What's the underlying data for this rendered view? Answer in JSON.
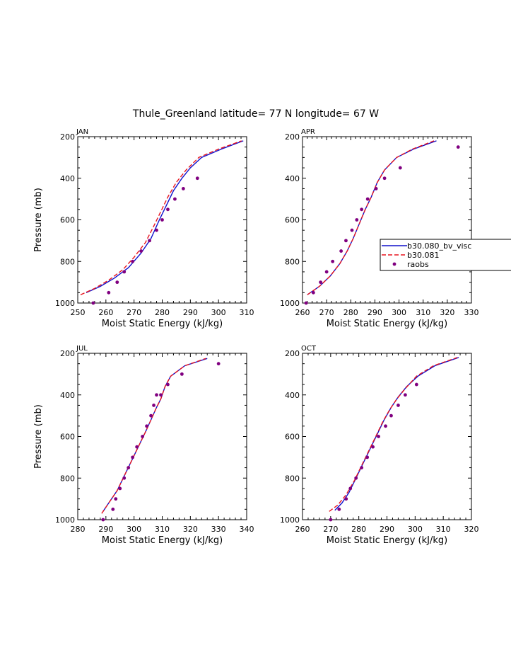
{
  "page_title": "Thule_Greenland  latitude= 77 N longitude= 67 W",
  "colors": {
    "model1": "#1010cc",
    "model2": "#e8141e",
    "obs": "#800080"
  },
  "legend": [
    {
      "label": "b30.080_bv_visc",
      "style": "solid",
      "color": "#1010cc"
    },
    {
      "label": "b30.081",
      "style": "dashed",
      "color": "#e8141e"
    },
    {
      "label": "raobs",
      "style": "marker",
      "color": "#800080"
    }
  ],
  "chart_data": [
    {
      "type": "line",
      "panel_label": "JAN",
      "xlabel": "Moist Static Energy (kJ/kg)",
      "ylabel": "Pressure (mb)",
      "xlim": [
        250,
        310
      ],
      "ylim": [
        200,
        1000
      ],
      "y_reversed": true,
      "xticks": [
        250,
        260,
        270,
        280,
        290,
        300,
        310
      ],
      "yticks": [
        200,
        400,
        600,
        800,
        1000
      ],
      "series": [
        {
          "name": "b30.080_bv_visc",
          "style": "solid",
          "x": [
            253,
            258,
            263,
            268,
            272.5,
            276,
            279,
            281.5,
            284,
            287,
            290,
            294,
            301,
            308.8
          ],
          "y": [
            950,
            920,
            880,
            830,
            760,
            690,
            600,
            530,
            460,
            400,
            350,
            300,
            260,
            220
          ]
        },
        {
          "name": "b30.081",
          "style": "dashed",
          "x": [
            251,
            256,
            261,
            266,
            270,
            274,
            277,
            279.5,
            282,
            285,
            288.5,
            293,
            300,
            308.2
          ],
          "y": [
            960,
            930,
            890,
            840,
            780,
            710,
            630,
            560,
            490,
            420,
            360,
            300,
            260,
            220
          ]
        },
        {
          "name": "raobs",
          "style": "marker",
          "x": [
            255.5,
            261,
            264,
            266.5,
            269.5,
            272.5,
            275.5,
            278,
            280,
            282,
            284.5,
            287.5,
            292.5
          ],
          "y": [
            1000,
            950,
            900,
            850,
            800,
            750,
            700,
            650,
            600,
            550,
            500,
            450,
            400
          ]
        }
      ]
    },
    {
      "type": "line",
      "panel_label": "APR",
      "xlabel": "Moist Static Energy (kJ/kg)",
      "ylabel": "",
      "xlim": [
        260,
        330
      ],
      "ylim": [
        200,
        1000
      ],
      "y_reversed": true,
      "xticks": [
        260,
        270,
        280,
        290,
        300,
        310,
        320,
        330
      ],
      "yticks": [
        200,
        400,
        600,
        800,
        1000
      ],
      "series": [
        {
          "name": "b30.080_bv_visc",
          "style": "solid",
          "x": [
            262,
            267,
            271.5,
            275.5,
            278.5,
            281,
            283.5,
            286,
            288.5,
            291,
            294,
            299,
            306,
            315.5
          ],
          "y": [
            960,
            920,
            870,
            810,
            750,
            690,
            620,
            550,
            490,
            420,
            360,
            300,
            260,
            220
          ]
        },
        {
          "name": "b30.081",
          "style": "dashed",
          "x": [
            262,
            267,
            271.5,
            275.5,
            278.5,
            281,
            283.5,
            286,
            288.5,
            291,
            294,
            299,
            305.5,
            314.5
          ],
          "y": [
            960,
            920,
            870,
            810,
            750,
            690,
            620,
            550,
            490,
            420,
            360,
            300,
            260,
            220
          ]
        },
        {
          "name": "raobs",
          "style": "marker",
          "x": [
            261.5,
            264.5,
            267.5,
            270,
            272.5,
            276,
            278,
            280.5,
            282.5,
            284.5,
            287,
            290.5,
            294,
            300.5,
            324.5
          ],
          "y": [
            1000,
            950,
            900,
            850,
            800,
            750,
            700,
            650,
            600,
            550,
            500,
            450,
            400,
            350,
            250
          ]
        }
      ]
    },
    {
      "type": "line",
      "panel_label": "JUL",
      "xlabel": "Moist Static Energy (kJ/kg)",
      "ylabel": "Pressure (mb)",
      "xlim": [
        280,
        340
      ],
      "ylim": [
        200,
        1000
      ],
      "y_reversed": true,
      "xticks": [
        280,
        290,
        300,
        310,
        320,
        330,
        340
      ],
      "yticks": [
        200,
        400,
        600,
        800,
        1000
      ],
      "series": [
        {
          "name": "b30.080_bv_visc",
          "style": "solid",
          "x": [
            289,
            291,
            294,
            296.5,
            299,
            301.5,
            304,
            306,
            308,
            309.5,
            311,
            313,
            318,
            326
          ],
          "y": [
            960,
            920,
            860,
            790,
            720,
            650,
            580,
            520,
            460,
            420,
            360,
            310,
            260,
            225
          ]
        },
        {
          "name": "b30.081",
          "style": "dashed",
          "x": [
            288.5,
            291,
            294,
            296.5,
            299,
            301.5,
            304,
            306,
            308,
            309.5,
            311,
            313,
            318,
            325.5
          ],
          "y": [
            970,
            920,
            860,
            790,
            720,
            650,
            580,
            520,
            460,
            420,
            360,
            310,
            260,
            225
          ]
        },
        {
          "name": "raobs",
          "style": "marker",
          "x": [
            289,
            292.5,
            293.5,
            295,
            296.5,
            298,
            299.5,
            301,
            303,
            304.5,
            306,
            307,
            308,
            309.5,
            312,
            317,
            330
          ],
          "y": [
            1000,
            950,
            900,
            850,
            800,
            750,
            700,
            650,
            600,
            550,
            500,
            450,
            400,
            400,
            350,
            300,
            250
          ]
        }
      ]
    },
    {
      "type": "line",
      "panel_label": "OCT",
      "xlabel": "Moist Static Energy (kJ/kg)",
      "ylabel": "",
      "xlim": [
        260,
        320
      ],
      "ylim": [
        200,
        1000
      ],
      "y_reversed": true,
      "xticks": [
        260,
        270,
        280,
        290,
        300,
        310,
        320
      ],
      "yticks": [
        200,
        400,
        600,
        800,
        1000
      ],
      "series": [
        {
          "name": "b30.080_bv_visc",
          "style": "solid",
          "x": [
            271.5,
            274,
            276.5,
            279,
            281.5,
            284,
            286.5,
            289,
            291.5,
            294,
            297,
            301,
            307,
            315.5
          ],
          "y": [
            955,
            920,
            870,
            800,
            730,
            660,
            590,
            520,
            460,
            410,
            360,
            310,
            260,
            220
          ]
        },
        {
          "name": "b30.081",
          "style": "dashed",
          "x": [
            269.5,
            272.5,
            275.5,
            278.5,
            281,
            283.5,
            286,
            288.5,
            291,
            293.5,
            296.5,
            300.5,
            306.5,
            315
          ],
          "y": [
            960,
            930,
            880,
            810,
            740,
            670,
            600,
            530,
            470,
            420,
            370,
            310,
            260,
            220
          ]
        },
        {
          "name": "raobs",
          "style": "marker",
          "x": [
            270,
            273,
            275.5,
            277,
            279,
            281,
            283,
            285,
            287,
            289.5,
            291.5,
            294,
            296.5,
            300.5
          ],
          "y": [
            1000,
            950,
            900,
            850,
            800,
            750,
            700,
            650,
            600,
            550,
            500,
            450,
            400,
            350
          ]
        }
      ]
    }
  ]
}
